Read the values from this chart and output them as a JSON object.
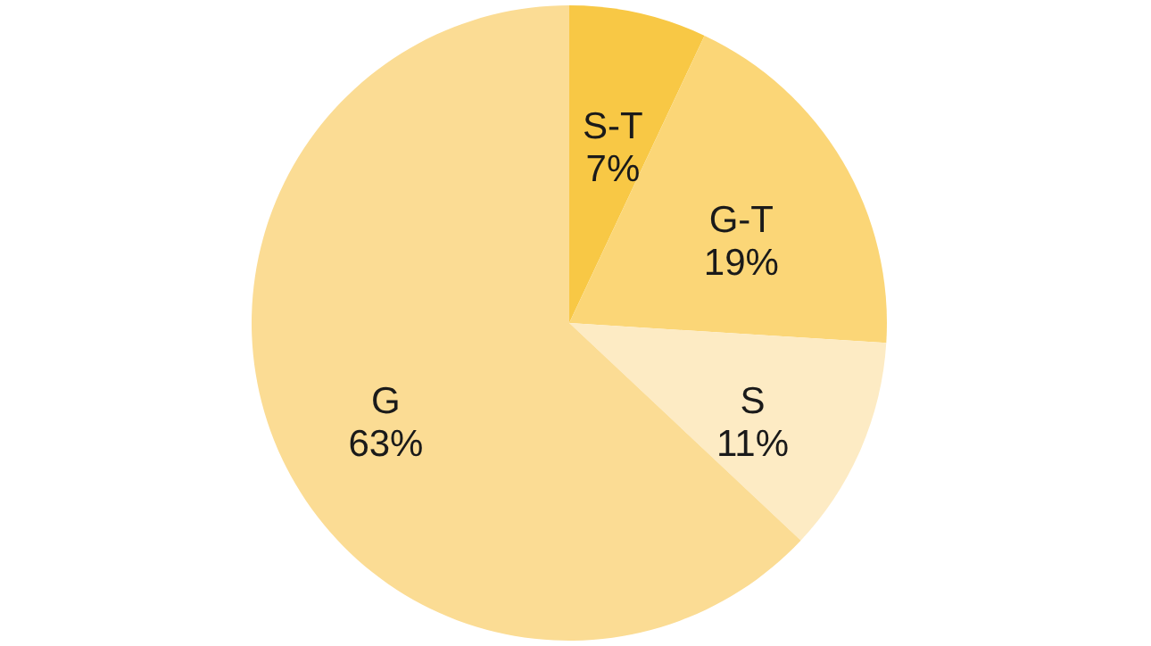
{
  "chart_data": {
    "type": "pie",
    "categories": [
      "S-T",
      "G-T",
      "S",
      "G"
    ],
    "values": [
      7,
      19,
      11,
      63
    ],
    "value_labels": [
      "7%",
      "19%",
      "11%",
      "63%"
    ],
    "colors": [
      "#f8c845",
      "#fbd677",
      "#fdebc4",
      "#fbdc94"
    ]
  }
}
